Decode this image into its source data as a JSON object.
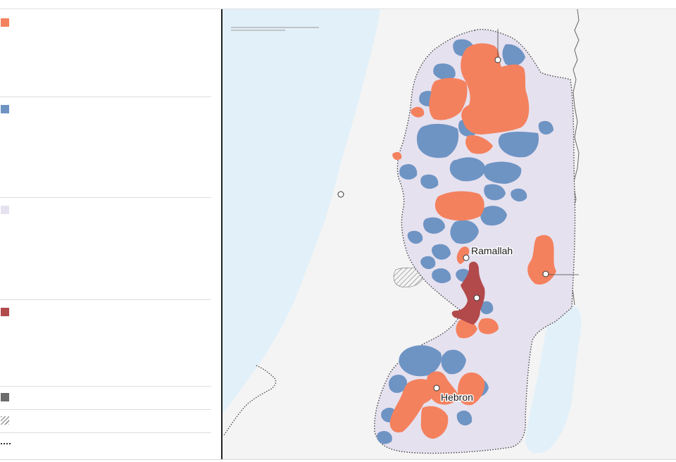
{
  "legend": {
    "items": [
      {
        "key": "area-a",
        "label": "",
        "color": "#f4815e"
      },
      {
        "key": "area-b",
        "label": "",
        "color": "#6e94c4"
      },
      {
        "key": "area-c",
        "label": "",
        "color": "#e6e1ef"
      },
      {
        "key": "east-jerusalem",
        "label": "",
        "color": "#b24a4c"
      },
      {
        "key": "israeli-settlement",
        "label": "",
        "color": "#6b6b6b"
      },
      {
        "key": "no-mans-land",
        "label": "",
        "color": "hatched"
      },
      {
        "key": "green-line",
        "label": "",
        "color": "dotted"
      }
    ]
  },
  "map": {
    "colors": {
      "sea": "#e2f0f9",
      "land": "#f4f4f4",
      "area_a": "#f4815e",
      "area_b": "#6e94c4",
      "area_c": "#e6e1ef",
      "east_jerusalem": "#b24a4c"
    },
    "scale_label": "",
    "cities": [
      {
        "key": "nablus",
        "label": ""
      },
      {
        "key": "tel-aviv",
        "label": ""
      },
      {
        "key": "ramallah",
        "label": "Ramallah"
      },
      {
        "key": "jericho",
        "label": ""
      },
      {
        "key": "jerusalem",
        "label": ""
      },
      {
        "key": "hebron",
        "label": "Hebron"
      }
    ]
  }
}
